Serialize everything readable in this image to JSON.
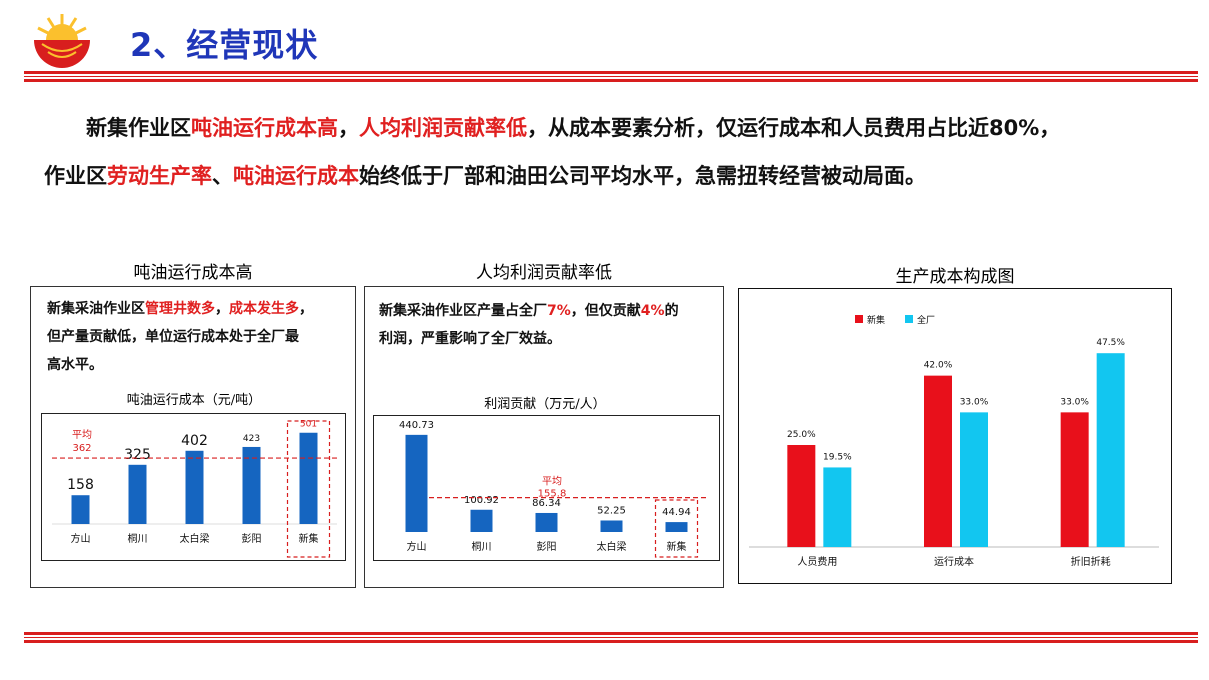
{
  "header": {
    "title": "2、经营现状"
  },
  "intro": {
    "line1": [
      {
        "text": "新集作业区",
        "red": false
      },
      {
        "text": "吨油运行成本高",
        "red": true
      },
      {
        "text": "，",
        "red": false
      },
      {
        "text": "人均利润贡献率低",
        "red": true
      },
      {
        "text": "，从成本要素分析，仅运行成本和人员费用占比近80%，",
        "red": false
      }
    ],
    "line2": [
      {
        "text": "作业区",
        "red": false
      },
      {
        "text": "劳动生产率",
        "red": true
      },
      {
        "text": "、",
        "red": false
      },
      {
        "text": "吨油运行成本",
        "red": true
      },
      {
        "text": "始终低于厂部和油田公司平均水平，急需扭转经营被动局面。",
        "red": false
      }
    ]
  },
  "panel1": {
    "title": "吨油运行成本高",
    "desc1": [
      {
        "text": "新集采油作业区",
        "red": false
      },
      {
        "text": "管理井数多",
        "red": true
      },
      {
        "text": "，",
        "red": false
      },
      {
        "text": "成本发生多",
        "red": true
      },
      {
        "text": "，",
        "red": false
      }
    ],
    "desc2": "但产量贡献低，单位运行成本处于全厂最",
    "desc3": "高水平。"
  },
  "panel2": {
    "title": "人均利润贡献率低",
    "desc1": [
      {
        "text": "新集采油作业区产量占全厂",
        "red": false
      },
      {
        "text": "7%",
        "red": true
      },
      {
        "text": "，但仅贡献",
        "red": false
      },
      {
        "text": "4%",
        "red": true
      },
      {
        "text": "的",
        "red": false
      }
    ],
    "desc2": "利润，严重影响了全厂效益。"
  },
  "panel3": {
    "title": "生产成本构成图"
  },
  "chart_data": [
    {
      "type": "bar",
      "title": "吨油运行成本（元/吨）",
      "categories": [
        "方山",
        "桐川",
        "太白梁",
        "彭阳",
        "新集"
      ],
      "values": [
        158,
        325,
        402,
        423,
        501
      ],
      "labels": [
        "158",
        "325",
        "402",
        "423",
        "501"
      ],
      "average": {
        "label": "平均",
        "value": 362,
        "value_label": "362"
      },
      "ylim": [
        0,
        560
      ],
      "highlight": "新集",
      "bar_color": "#1565c0"
    },
    {
      "type": "bar",
      "title": "利润贡献（万元/人）",
      "categories": [
        "方山",
        "桐川",
        "彭阳",
        "太白梁",
        "新集"
      ],
      "values": [
        440.73,
        100.92,
        86.34,
        52.25,
        44.94
      ],
      "labels": [
        "440.73",
        "100.92",
        "86.34",
        "52.25",
        "44.94"
      ],
      "average": {
        "label": "平均",
        "value": 155.8,
        "value_label": "155.8"
      },
      "ylim": [
        0,
        490
      ],
      "highlight": "新集",
      "bar_color": "#1565c0"
    },
    {
      "type": "bar",
      "categories": [
        "人员费用",
        "运行成本",
        "折旧折耗"
      ],
      "series": [
        {
          "name": "新集",
          "values": [
            25.0,
            42.0,
            33.0
          ],
          "labels": [
            "25.0%",
            "42.0%",
            "33.0%"
          ],
          "color": "#e8101b"
        },
        {
          "name": "全厂",
          "values": [
            19.5,
            33.0,
            47.5
          ],
          "labels": [
            "19.5%",
            "33.0%",
            "47.5%"
          ],
          "color": "#12c6f0"
        }
      ],
      "ylim": [
        0,
        50
      ],
      "legend": "top-left"
    }
  ]
}
